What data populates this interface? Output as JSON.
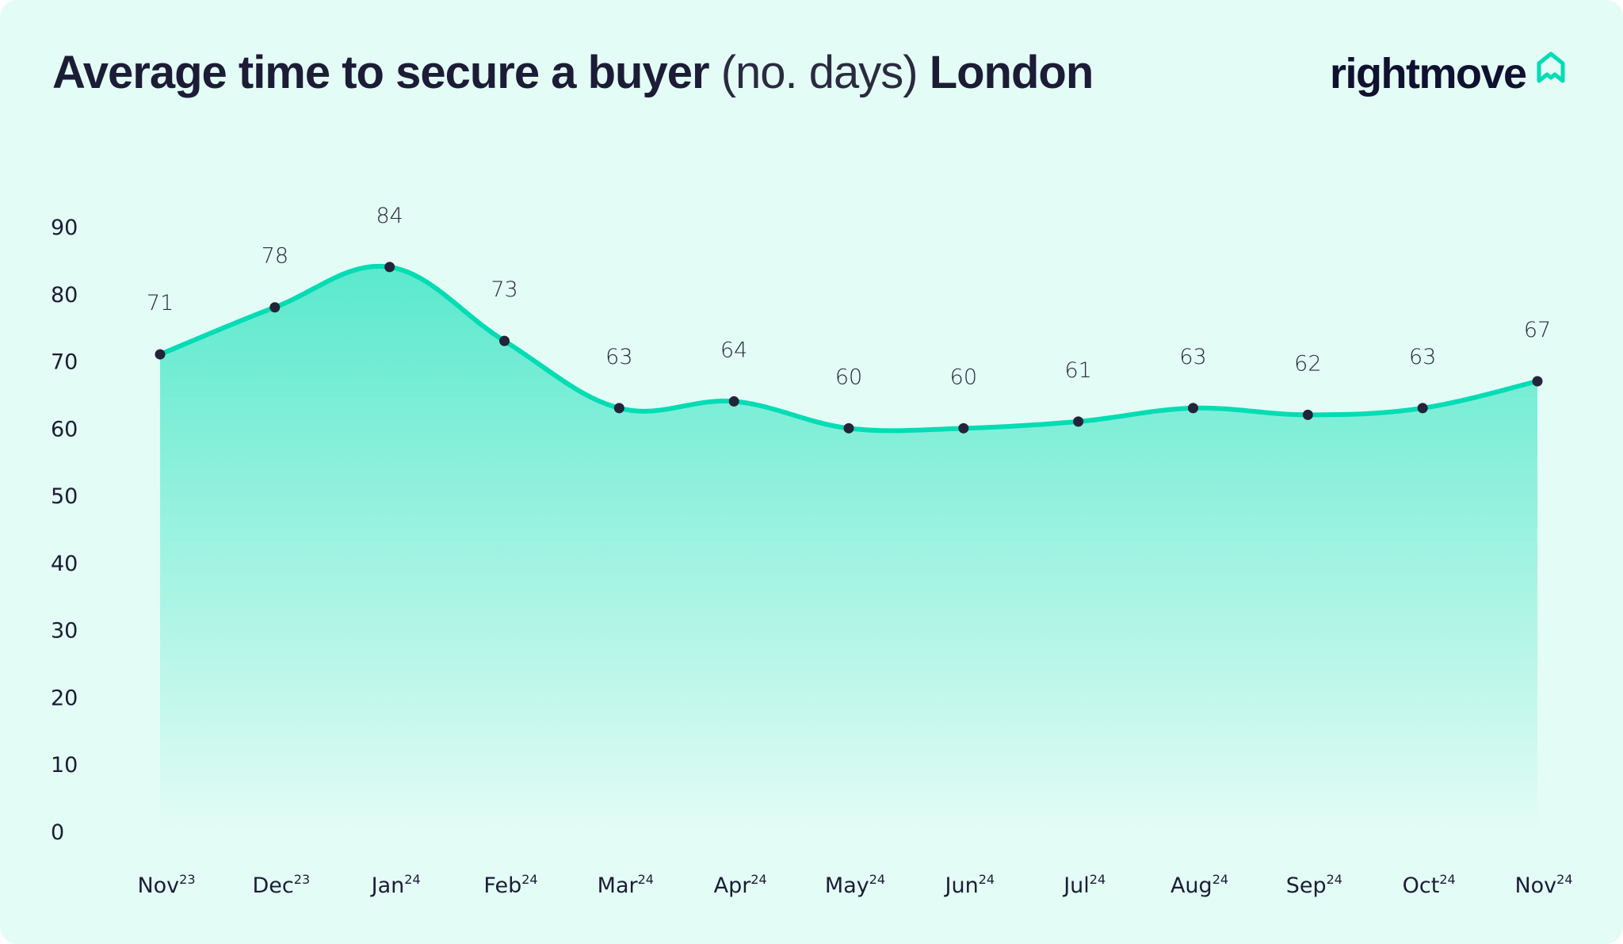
{
  "header": {
    "title_bold": "Average time to secure a buyer",
    "title_light": "(no. days)",
    "title_region": "London",
    "logo_text": "rightmove",
    "logo_icon": "house-outline-icon"
  },
  "colors": {
    "background": "#e3fcf5",
    "line": "#00dcb4",
    "fill_top": "#5ae9cd",
    "fill_bottom": "#e3fcf5",
    "marker": "#23233a",
    "text": "#1c1c36"
  },
  "chart_data": {
    "type": "area",
    "title": "Average time to secure a buyer (no. days) London",
    "xlabel": "",
    "ylabel": "",
    "ylim": [
      0,
      90
    ],
    "yticks": [
      0,
      10,
      20,
      30,
      40,
      50,
      60,
      70,
      80,
      90
    ],
    "grid": false,
    "smooth": true,
    "categories": [
      {
        "month": "Nov",
        "year": "23"
      },
      {
        "month": "Dec",
        "year": "23"
      },
      {
        "month": "Jan",
        "year": "24"
      },
      {
        "month": "Feb",
        "year": "24"
      },
      {
        "month": "Mar",
        "year": "24"
      },
      {
        "month": "Apr",
        "year": "24"
      },
      {
        "month": "May",
        "year": "24"
      },
      {
        "month": "Jun",
        "year": "24"
      },
      {
        "month": "Jul",
        "year": "24"
      },
      {
        "month": "Aug",
        "year": "24"
      },
      {
        "month": "Sep",
        "year": "24"
      },
      {
        "month": "Oct",
        "year": "24"
      },
      {
        "month": "Nov",
        "year": "24"
      }
    ],
    "values": [
      71,
      78,
      84,
      73,
      63,
      64,
      60,
      60,
      61,
      63,
      62,
      63,
      67
    ]
  }
}
